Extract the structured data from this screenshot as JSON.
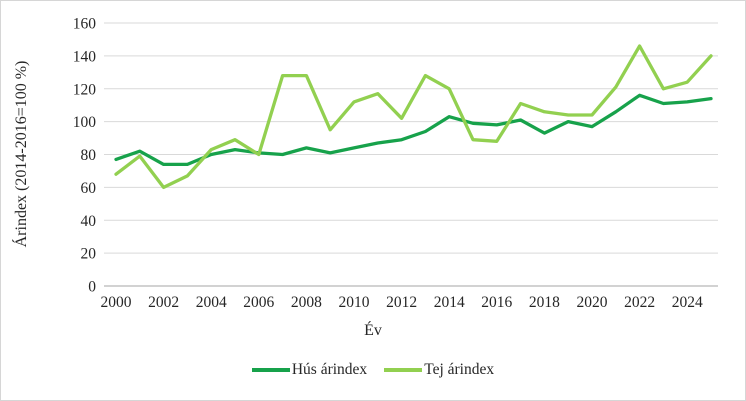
{
  "chart": {
    "frame_border_color": "#d6d6d6",
    "background_color": "#ffffff",
    "gridline_color": "#d9d9d9",
    "axis_line_color": "#a6a6a6",
    "text_color": "#262626"
  },
  "chart_data": {
    "type": "line",
    "title": "",
    "xlabel": "Év",
    "ylabel": "Árindex (2014-2016=100 %)",
    "x": [
      2000,
      2001,
      2002,
      2003,
      2004,
      2005,
      2006,
      2007,
      2008,
      2009,
      2010,
      2011,
      2012,
      2013,
      2014,
      2015,
      2016,
      2017,
      2018,
      2019,
      2020,
      2021,
      2022,
      2023,
      2024,
      2025
    ],
    "x_tick_labels": [
      "2000",
      "2002",
      "2004",
      "2006",
      "2008",
      "2010",
      "2012",
      "2014",
      "2016",
      "2018",
      "2020",
      "2022",
      "2024"
    ],
    "y_ticks": [
      0,
      20,
      40,
      60,
      80,
      100,
      120,
      140,
      160
    ],
    "ylim": [
      0,
      160
    ],
    "grid": "horizontal",
    "legend_position": "bottom-center",
    "series": [
      {
        "name": "Hús árindex",
        "color": "#17a24b",
        "values": [
          77,
          82,
          74,
          74,
          80,
          83,
          81,
          80,
          84,
          81,
          84,
          87,
          89,
          94,
          103,
          99,
          98,
          101,
          93,
          100,
          97,
          106,
          116,
          111,
          112,
          114
        ]
      },
      {
        "name": "Tej árindex",
        "color": "#92d050",
        "values": [
          68,
          79,
          60,
          67,
          83,
          89,
          80,
          128,
          128,
          95,
          112,
          117,
          102,
          128,
          120,
          89,
          88,
          111,
          106,
          104,
          104,
          121,
          146,
          120,
          124,
          140
        ]
      }
    ]
  }
}
